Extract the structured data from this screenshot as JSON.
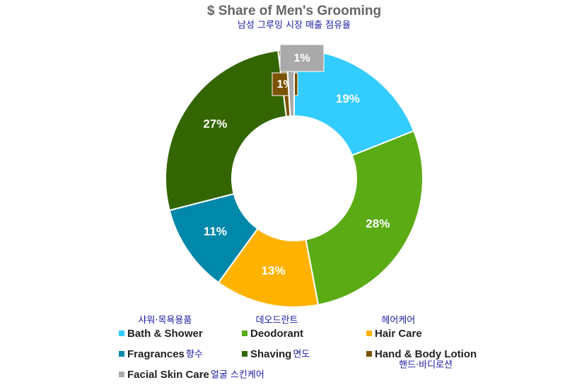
{
  "chart_data": {
    "type": "donut",
    "title": "$ Share of Men's Grooming",
    "subtitle": "남성 그루밍 시장 매출 점유율",
    "categories": [
      "Bath & Shower",
      "Deodorant",
      "Hair Care",
      "Fragrances",
      "Shaving",
      "Hand & Body Lotion",
      "Facial Skin Care"
    ],
    "annotations": [
      "샤워·목욕용품",
      "데오드란트",
      "헤어케어",
      "향수",
      "면도",
      "핸드·바디로션",
      "얼굴 스킨케어"
    ],
    "values": [
      19,
      28,
      13,
      11,
      27,
      1,
      1
    ],
    "value_labels": [
      "19%",
      "28%",
      "13%",
      "11%",
      "27%",
      "1%",
      "1%"
    ],
    "colors": [
      "#33ccff",
      "#5aab14",
      "#ffb300",
      "#0088aa",
      "#336600",
      "#7a5200",
      "#aaaaaa"
    ],
    "legend": "bottom"
  }
}
